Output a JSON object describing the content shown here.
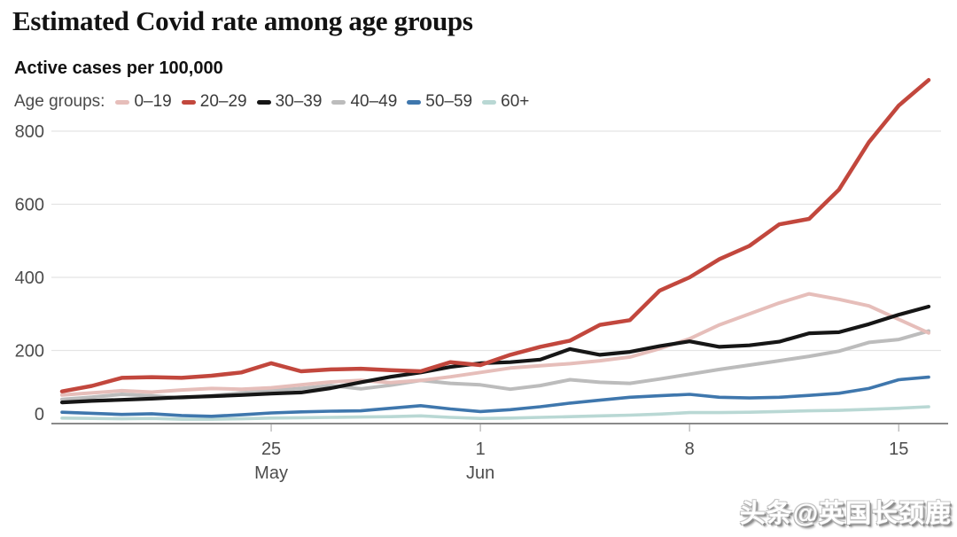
{
  "header": {
    "title": "Estimated Covid rate among age groups",
    "subtitle": "Active cases per 100,000"
  },
  "legend": {
    "label": "Age groups:"
  },
  "watermark": {
    "text": "头条@英国长颈鹿"
  },
  "colors": {
    "age_0_19": "#e6beba",
    "age_20_29": "#c2473d",
    "age_30_39": "#161616",
    "age_40_49": "#bcbcbc",
    "age_50_59": "#3f77ad",
    "age_60_plus": "#b9d8d4",
    "gridline": "#e4e4e4",
    "axis_line": "#8a8a8a",
    "tick_mark": "#c0c0c0",
    "axis_text": "#4c4c4c"
  },
  "chart_data": {
    "type": "line",
    "title": "Estimated Covid rate among age groups",
    "ylabel": "Active cases per 100,000",
    "xlabel": "",
    "grid": "horizontal",
    "legend_position": "top",
    "ylim": [
      0,
      950
    ],
    "y_ticks": [
      0,
      200,
      400,
      600,
      800
    ],
    "x_tick_indices": [
      7,
      14,
      21,
      28
    ],
    "x_ticks": [
      {
        "day": "25",
        "month": "May"
      },
      {
        "day": "1",
        "month": "Jun"
      },
      {
        "day": "8",
        "month": ""
      },
      {
        "day": "15",
        "month": ""
      }
    ],
    "series": [
      {
        "name": "0–19",
        "color": "#e6beba",
        "values": [
          78,
          84,
          90,
          86,
          92,
          96,
          94,
          98,
          106,
          114,
          118,
          112,
          118,
          128,
          140,
          152,
          158,
          164,
          172,
          182,
          205,
          232,
          270,
          300,
          330,
          355,
          340,
          322,
          285,
          248
        ]
      },
      {
        "name": "20–29",
        "color": "#c2473d",
        "values": [
          88,
          103,
          125,
          127,
          125,
          131,
          140,
          165,
          143,
          148,
          150,
          146,
          143,
          168,
          160,
          188,
          210,
          227,
          270,
          283,
          364,
          400,
          450,
          486,
          545,
          560,
          640,
          770,
          870,
          940
        ]
      },
      {
        "name": "30–39",
        "color": "#161616",
        "values": [
          58,
          62,
          65,
          68,
          72,
          75,
          78,
          82,
          85,
          97,
          113,
          128,
          140,
          155,
          165,
          168,
          175,
          204,
          188,
          196,
          212,
          225,
          210,
          214,
          224,
          247,
          250,
          272,
          298,
          320
        ]
      },
      {
        "name": "40–49",
        "color": "#bcbcbc",
        "values": [
          66,
          72,
          80,
          76,
          70,
          76,
          84,
          90,
          96,
          104,
          95,
          105,
          118,
          110,
          106,
          94,
          104,
          120,
          113,
          110,
          122,
          135,
          148,
          160,
          172,
          184,
          198,
          222,
          230,
          253
        ]
      },
      {
        "name": "50–59",
        "color": "#3f77ad",
        "values": [
          31,
          28,
          25,
          27,
          22,
          20,
          24,
          29,
          32,
          34,
          35,
          42,
          49,
          40,
          33,
          38,
          46,
          56,
          64,
          72,
          76,
          80,
          72,
          70,
          72,
          77,
          83,
          96,
          120,
          127
        ]
      },
      {
        "name": "60+",
        "color": "#b9d8d4",
        "values": [
          15,
          14,
          13,
          14,
          12,
          12,
          13,
          15,
          16,
          17,
          18,
          19,
          21,
          17,
          14,
          15,
          17,
          19,
          21,
          23,
          26,
          30,
          30,
          31,
          33,
          35,
          36,
          39,
          42,
          46
        ]
      }
    ]
  }
}
